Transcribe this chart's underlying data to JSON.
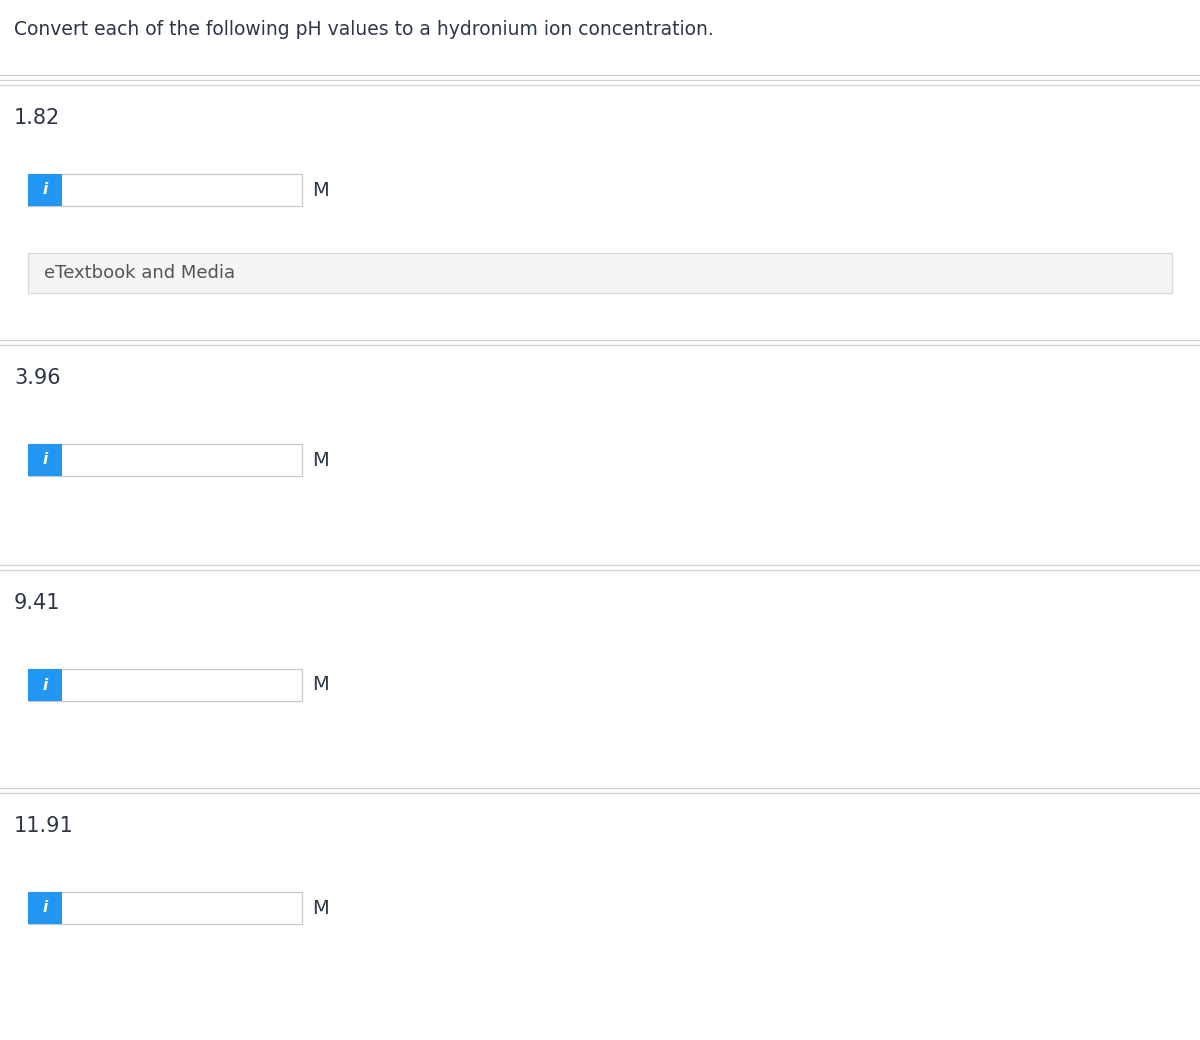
{
  "title": "Convert each of the following pH values to a hydronium ion concentration.",
  "title_color": "#2d3748",
  "title_fontsize": 13.5,
  "background_color": "#ffffff",
  "ph_values": [
    "1.82",
    "3.96",
    "9.41",
    "11.91"
  ],
  "unit_label": "M",
  "info_button_color": "#2196F3",
  "info_button_text": "i",
  "info_button_text_color": "#ffffff",
  "input_box_bg": "#ffffff",
  "input_box_border": "#c8c8c8",
  "etextbook_label": "eTextbook and Media",
  "etextbook_bg": "#f5f5f5",
  "etextbook_border": "#d8d8d8",
  "etextbook_text_color": "#555555",
  "separator_color": "#d0d0d0",
  "label_color": "#2d3748",
  "label_fontsize": 15,
  "unit_fontsize": 14,
  "fig_width": 12.0,
  "fig_height": 10.4,
  "dpi": 100
}
